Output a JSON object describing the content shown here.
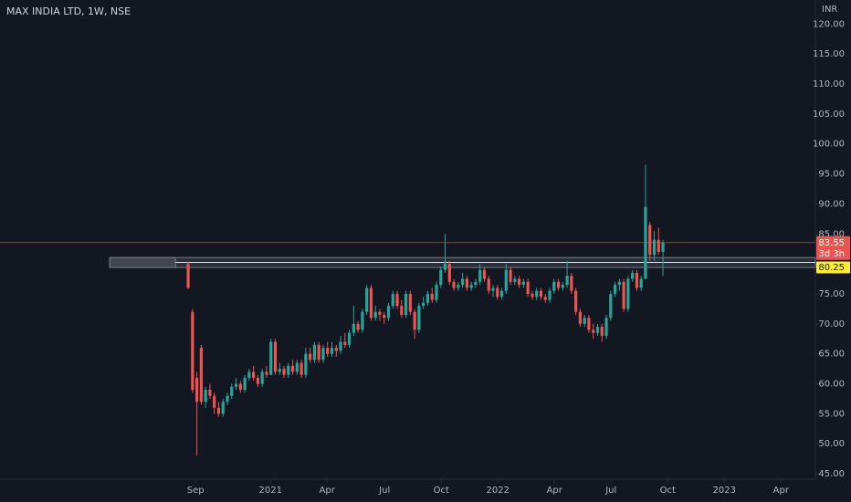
{
  "chart_data": {
    "type": "candlestick",
    "title": "MAX INDIA LTD, 1W, NSE",
    "currency": "INR",
    "up_color": "#26a69a",
    "down_color": "#ef5350",
    "ylim": [
      44.1,
      124.0
    ],
    "yticks": [
      {
        "value": 45,
        "label": "45.00"
      },
      {
        "value": 50,
        "label": "50.00"
      },
      {
        "value": 55,
        "label": "55.00"
      },
      {
        "value": 60,
        "label": "60.00"
      },
      {
        "value": 65,
        "label": "65.00"
      },
      {
        "value": 70,
        "label": "70.00"
      },
      {
        "value": 75,
        "label": "75.00"
      },
      {
        "value": 85,
        "label": "85.00"
      },
      {
        "value": 90,
        "label": "90.00"
      },
      {
        "value": 95,
        "label": "95.00"
      },
      {
        "value": 100,
        "label": "100.00"
      },
      {
        "value": 105,
        "label": "105.00"
      },
      {
        "value": 110,
        "label": "110.00"
      },
      {
        "value": 115,
        "label": "115.00"
      },
      {
        "value": 120,
        "label": "120.00"
      }
    ],
    "xlim": [
      -43.2,
      144.0
    ],
    "xticks": [
      {
        "value": 1.7,
        "label": "Sep"
      },
      {
        "value": 18.9,
        "label": "2021"
      },
      {
        "value": 31.9,
        "label": "Apr"
      },
      {
        "value": 45.1,
        "label": "Jul"
      },
      {
        "value": 58.1,
        "label": "Oct"
      },
      {
        "value": 71.1,
        "label": "2022"
      },
      {
        "value": 84.1,
        "label": "Apr"
      },
      {
        "value": 97.1,
        "label": "Jul"
      },
      {
        "value": 110.1,
        "label": "Oct"
      },
      {
        "value": 123.1,
        "label": "2023"
      },
      {
        "value": 136.1,
        "label": "Apr"
      }
    ],
    "last_price": 83.55,
    "countdown": "3d 3h",
    "level": 80.25,
    "zone": {
      "x_start": -18.0,
      "top": 81.05,
      "bottom": 79.4
    },
    "candles": [
      [
        80,
        80.3,
        75.8,
        76
      ],
      [
        72,
        72.5,
        58.5,
        59
      ],
      [
        61,
        62,
        48,
        57
      ],
      [
        66,
        66.5,
        56.5,
        57
      ],
      [
        57,
        59.5,
        56,
        59
      ],
      [
        59,
        60,
        57.5,
        58
      ],
      [
        58,
        58.5,
        55,
        56
      ],
      [
        56,
        57,
        54.5,
        55
      ],
      [
        55,
        57.5,
        54.5,
        57
      ],
      [
        57,
        58.5,
        56.5,
        58
      ],
      [
        58,
        60,
        57.5,
        59.5
      ],
      [
        59.5,
        61,
        59,
        60
      ],
      [
        60,
        60.5,
        58.5,
        59
      ],
      [
        59,
        61.5,
        58.5,
        61
      ],
      [
        61,
        62.5,
        60.5,
        62
      ],
      [
        62,
        63,
        60.5,
        61
      ],
      [
        61,
        61.5,
        59.5,
        60
      ],
      [
        60,
        62.5,
        59.5,
        62
      ],
      [
        62,
        63,
        61,
        61.5
      ],
      [
        61.5,
        67.5,
        61.5,
        67
      ],
      [
        67,
        67.5,
        61.5,
        62
      ],
      [
        62,
        63.5,
        61.5,
        62.5
      ],
      [
        62.5,
        63,
        61,
        61.5
      ],
      [
        61.5,
        63.5,
        61,
        63
      ],
      [
        63,
        64,
        61.5,
        62
      ],
      [
        62,
        64,
        61.5,
        63.5
      ],
      [
        63.5,
        64,
        61,
        61.5
      ],
      [
        61.5,
        66,
        61,
        65
      ],
      [
        65,
        66,
        63.5,
        64
      ],
      [
        64,
        67,
        63.5,
        66.5
      ],
      [
        66.5,
        67,
        63.5,
        64
      ],
      [
        64,
        66.5,
        63.5,
        66
      ],
      [
        66,
        67,
        64.5,
        65
      ],
      [
        65,
        67,
        64.5,
        66
      ],
      [
        66,
        66.5,
        64.5,
        65.5
      ],
      [
        65.5,
        68,
        65,
        67
      ],
      [
        67,
        68.5,
        66,
        66.5
      ],
      [
        66.5,
        69,
        66,
        68.5
      ],
      [
        68.5,
        73,
        68,
        70
      ],
      [
        70,
        70.5,
        68.5,
        69
      ],
      [
        69,
        72.5,
        68.5,
        72
      ],
      [
        72,
        76.5,
        71.5,
        76
      ],
      [
        76,
        76.5,
        70.5,
        71
      ],
      [
        71,
        73,
        70.5,
        72
      ],
      [
        72,
        72.5,
        70.5,
        71.5
      ],
      [
        71.5,
        72,
        70,
        71
      ],
      [
        71,
        73.5,
        70.5,
        73
      ],
      [
        73,
        75.5,
        72.5,
        75
      ],
      [
        75,
        75.5,
        72.5,
        73
      ],
      [
        73,
        74,
        71,
        71.5
      ],
      [
        71.5,
        75.5,
        71,
        75
      ],
      [
        75,
        75.5,
        71.5,
        72
      ],
      [
        72,
        72.5,
        67.5,
        69
      ],
      [
        69,
        73.5,
        68.5,
        73
      ],
      [
        73,
        74.5,
        72.5,
        73.5
      ],
      [
        73.5,
        75.5,
        73,
        75
      ],
      [
        75,
        76,
        73.5,
        74
      ],
      [
        74,
        77,
        73.5,
        76.5
      ],
      [
        76.5,
        79.5,
        76,
        79
      ],
      [
        79,
        85,
        78.5,
        80
      ],
      [
        80,
        80.5,
        76.5,
        77
      ],
      [
        77,
        77.5,
        75.5,
        76
      ],
      [
        76,
        77,
        75.5,
        76.5
      ],
      [
        76.5,
        78.5,
        76,
        77.5
      ],
      [
        77.5,
        78,
        75.5,
        76
      ],
      [
        76,
        77,
        75.5,
        76.5
      ],
      [
        76.5,
        77.5,
        76,
        77
      ],
      [
        77,
        80,
        76.5,
        79
      ],
      [
        79,
        79.5,
        77,
        77.5
      ],
      [
        77.5,
        78,
        75,
        75.5
      ],
      [
        75.5,
        76.5,
        74.5,
        76
      ],
      [
        76,
        76.5,
        74,
        74.5
      ],
      [
        74.5,
        76,
        74,
        75.5
      ],
      [
        75.5,
        80,
        75,
        79
      ],
      [
        79,
        79.5,
        76.5,
        77
      ],
      [
        77,
        78,
        76.5,
        77.5
      ],
      [
        77.5,
        78,
        76,
        76.5
      ],
      [
        76.5,
        77.5,
        76,
        77
      ],
      [
        77,
        77.5,
        74.5,
        75
      ],
      [
        75,
        75.5,
        74,
        74.5
      ],
      [
        74.5,
        76,
        74,
        75.5
      ],
      [
        75.5,
        76,
        74,
        74.5
      ],
      [
        74.5,
        75,
        73.5,
        74
      ],
      [
        74,
        76,
        73.5,
        75.5
      ],
      [
        75.5,
        77.5,
        75,
        77
      ],
      [
        77,
        77.5,
        75.5,
        76
      ],
      [
        76,
        77,
        75.5,
        76.5
      ],
      [
        76.5,
        80.5,
        76,
        78
      ],
      [
        78,
        78.5,
        75,
        75.5
      ],
      [
        75.5,
        76,
        71.5,
        72
      ],
      [
        72,
        72.5,
        69.5,
        70
      ],
      [
        70,
        71.5,
        69.5,
        71
      ],
      [
        71,
        71.5,
        68.5,
        69
      ],
      [
        69,
        70,
        67.5,
        68.5
      ],
      [
        68.5,
        70,
        68,
        69.5
      ],
      [
        69.5,
        70,
        67,
        68
      ],
      [
        68,
        71.5,
        67.5,
        71
      ],
      [
        71,
        75.5,
        70.5,
        75
      ],
      [
        75,
        77,
        74.5,
        76.5
      ],
      [
        76.5,
        77.5,
        75.5,
        77
      ],
      [
        77,
        77.5,
        72,
        72.5
      ],
      [
        72.5,
        78,
        72,
        77.5
      ],
      [
        77.5,
        79,
        77,
        78.5
      ],
      [
        78.5,
        79,
        75.5,
        76
      ],
      [
        76,
        78,
        75.5,
        77.5
      ],
      [
        77.5,
        96.5,
        77.5,
        89.5
      ],
      [
        86.5,
        87,
        80.5,
        81.5
      ],
      [
        81.5,
        85.5,
        80.5,
        84
      ],
      [
        84,
        86,
        81.5,
        82
      ],
      [
        82,
        84,
        78,
        83.55
      ]
    ]
  }
}
